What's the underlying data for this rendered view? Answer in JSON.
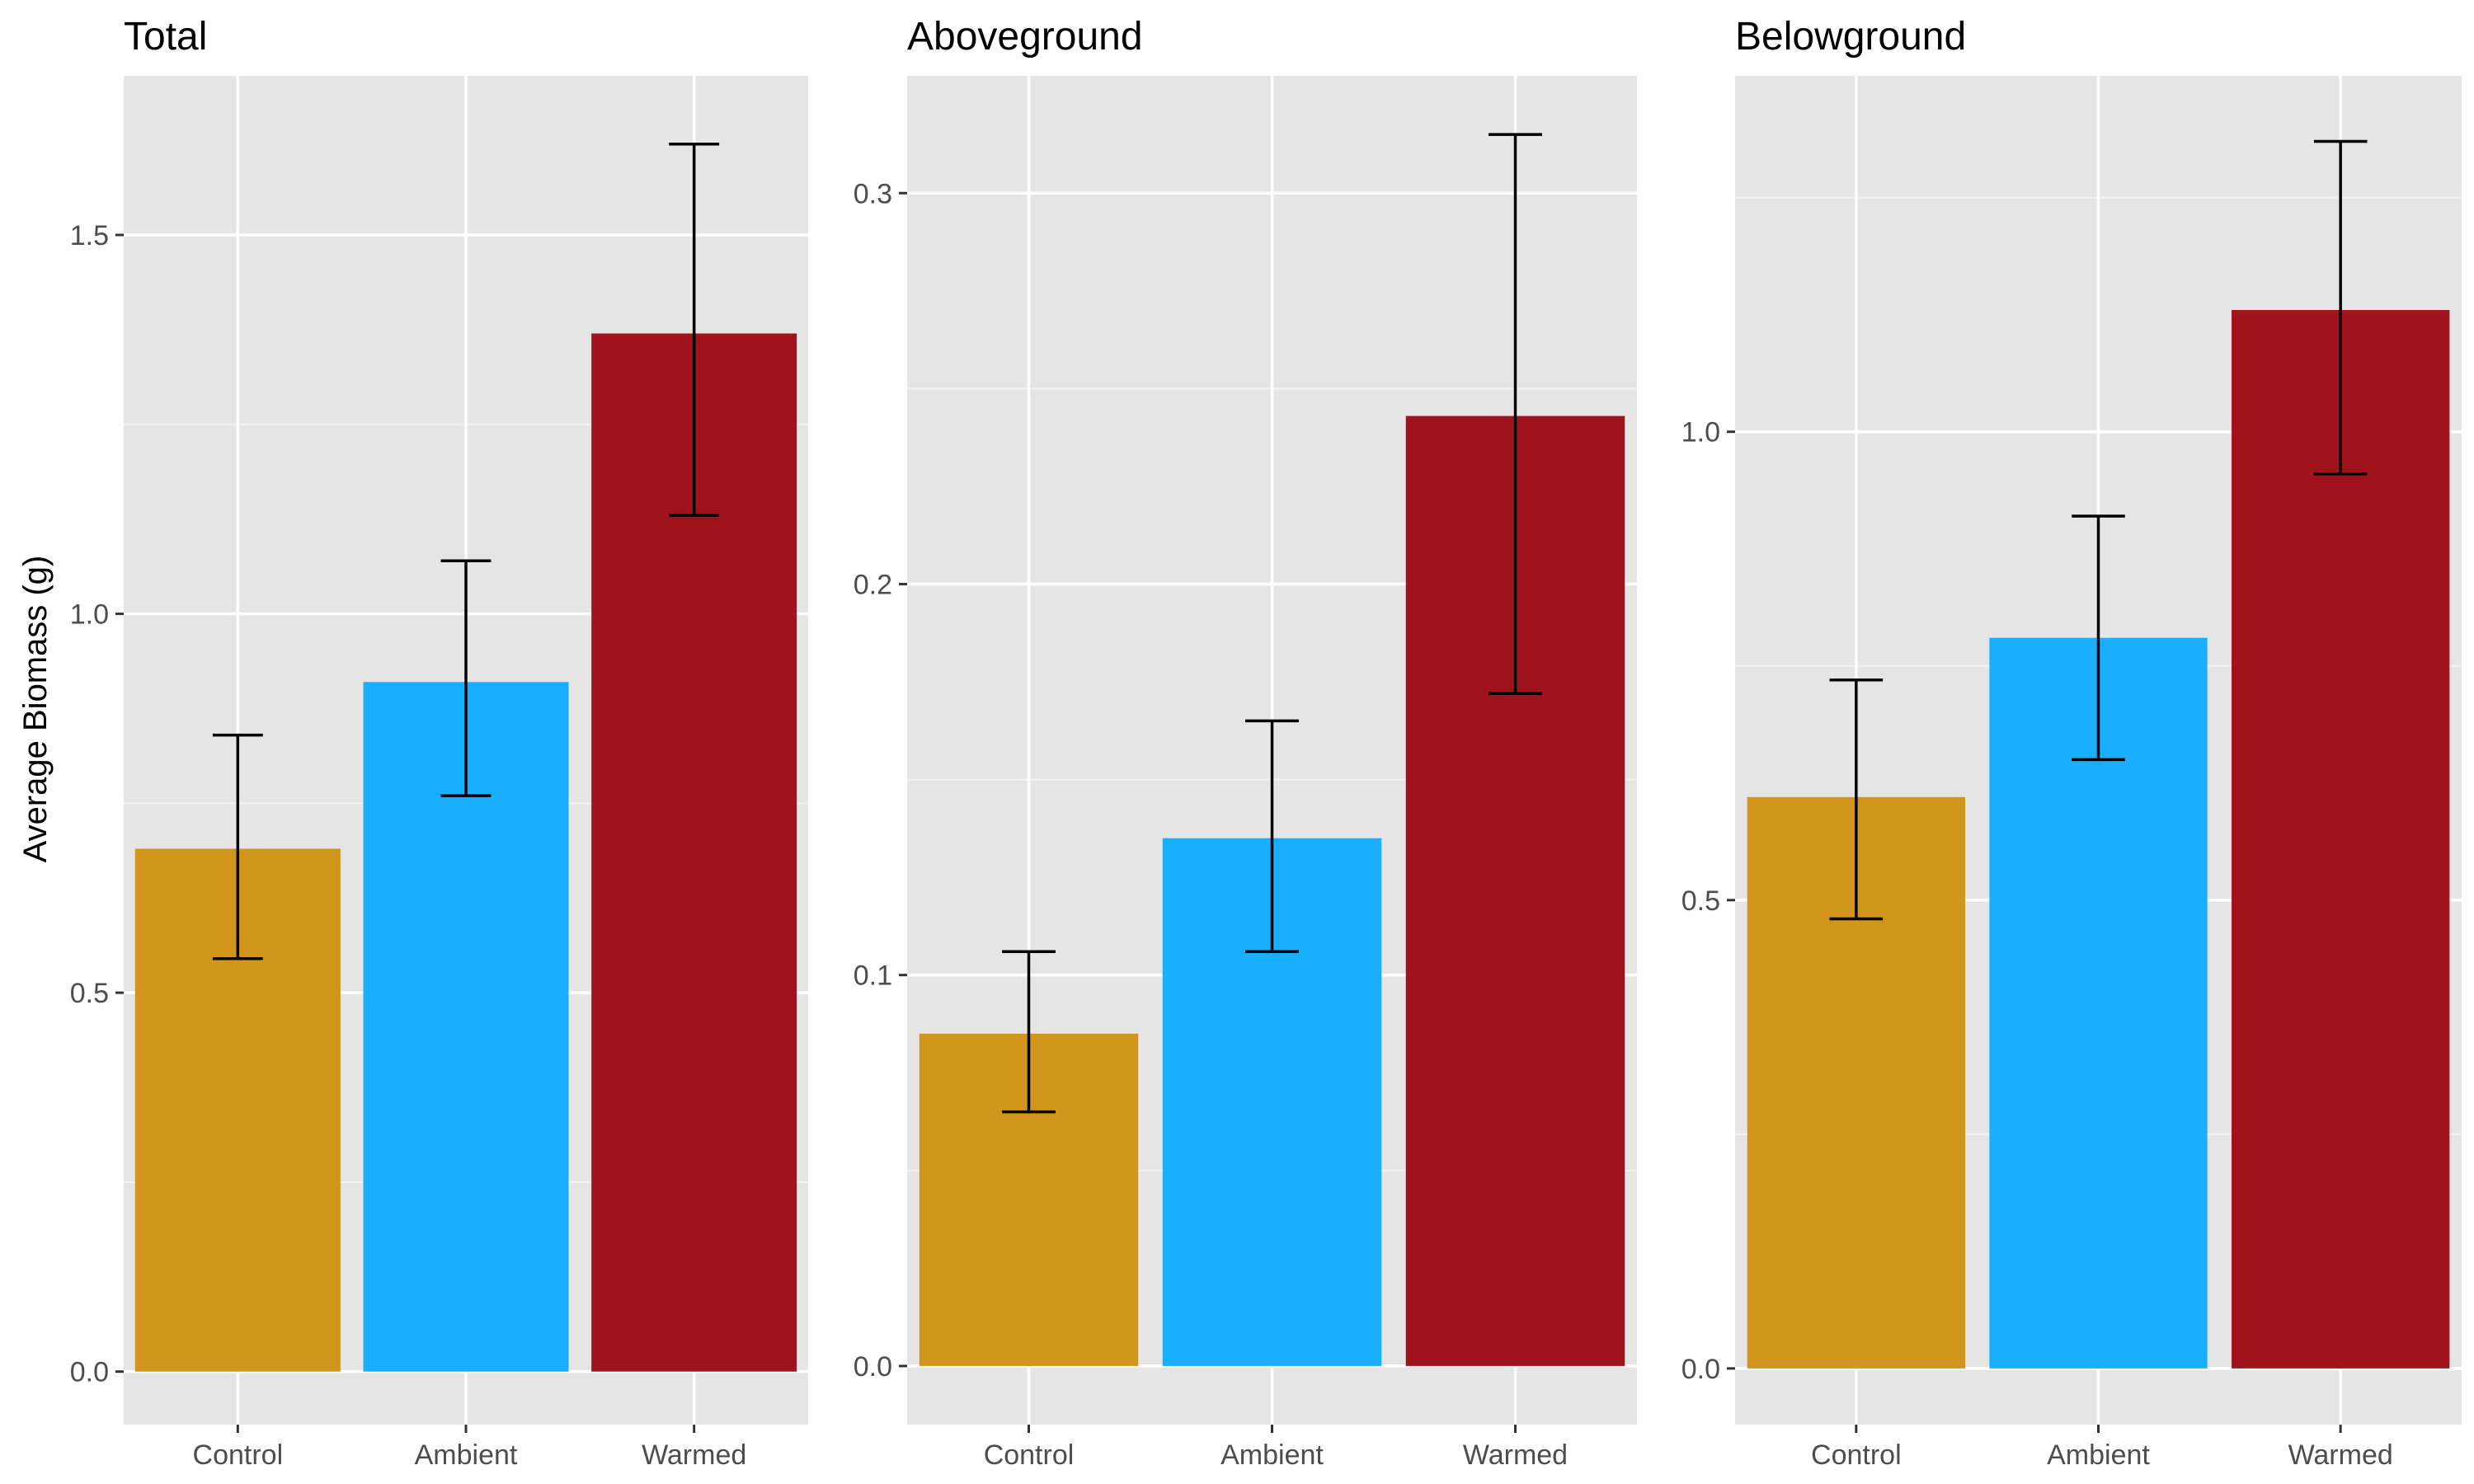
{
  "chart_data": {
    "type": "bar",
    "ylabel": "Average Biomass (g)",
    "categories": [
      "Control",
      "Ambient",
      "Warmed"
    ],
    "colors": [
      "#D1951B",
      "#1AAFFE",
      "#A0121C"
    ],
    "grid": true,
    "legend": "none",
    "panels": [
      {
        "title": "Total",
        "ylim": [
          -0.07,
          1.71
        ],
        "yticks": [
          "0.0",
          "0.5",
          "1.0",
          "1.5"
        ],
        "yticks_values": [
          0.0,
          0.5,
          1.0,
          1.5
        ],
        "values": [
          0.69,
          0.91,
          1.37
        ],
        "error_low": [
          0.545,
          0.76,
          1.13
        ],
        "error_high": [
          0.84,
          1.07,
          1.62
        ]
      },
      {
        "title": "Aboveground",
        "ylim": [
          -0.015,
          0.33
        ],
        "yticks": [
          "0.0",
          "0.1",
          "0.2",
          "0.3"
        ],
        "yticks_values": [
          0.0,
          0.1,
          0.2,
          0.3
        ],
        "values": [
          0.085,
          0.135,
          0.243
        ],
        "error_low": [
          0.065,
          0.106,
          0.172
        ],
        "error_high": [
          0.106,
          0.165,
          0.315
        ]
      },
      {
        "title": "Belowground",
        "ylim": [
          -0.06,
          1.38
        ],
        "yticks": [
          "0.0",
          "0.5",
          "1.0"
        ],
        "yticks_values": [
          0.0,
          0.5,
          1.0
        ],
        "values": [
          0.61,
          0.78,
          1.13
        ],
        "error_low": [
          0.48,
          0.65,
          0.955
        ],
        "error_high": [
          0.735,
          0.91,
          1.31
        ]
      }
    ]
  }
}
